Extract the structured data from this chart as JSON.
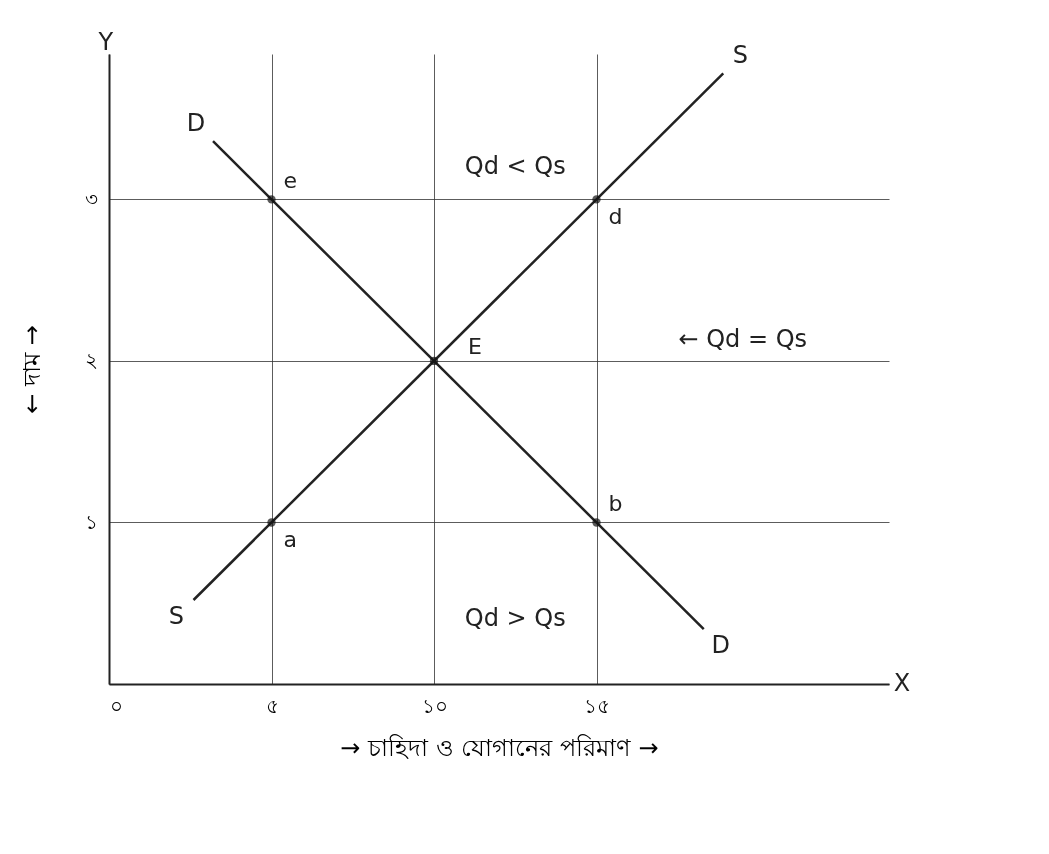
{
  "chart_data": {
    "type": "line",
    "xlabel": "→ চাহিদা ও যোগানের পরিমাণ →",
    "ylabel": "← দাম →",
    "xlim": [
      0,
      24
    ],
    "ylim": [
      0,
      3.9
    ],
    "xticks": [
      {
        "value": 0,
        "label": "০"
      },
      {
        "value": 5,
        "label": "৫"
      },
      {
        "value": 10,
        "label": "১০"
      },
      {
        "value": 15,
        "label": "১৫"
      }
    ],
    "yticks": [
      {
        "value": 0,
        "label": null
      },
      {
        "value": 1,
        "label": "১"
      },
      {
        "value": 2,
        "label": "২"
      },
      {
        "value": 3,
        "label": "৩"
      }
    ],
    "grid": true,
    "series": [
      {
        "name": "D",
        "color": "#222222",
        "x": [
          3.2,
          18.3
        ],
        "values": [
          3.36,
          0.34
        ]
      },
      {
        "name": "S",
        "color": "#222222",
        "x": [
          2.6,
          18.9
        ],
        "values": [
          0.52,
          3.78
        ]
      },
      {
        "type": "scatter",
        "color": "#111111",
        "marker": "circle",
        "x": [
          5,
          15,
          10,
          5,
          15
        ],
        "values": [
          3,
          3,
          2,
          1,
          1
        ],
        "value_labels": [
          "e",
          "d",
          "E",
          "a",
          "b"
        ]
      }
    ],
    "annotations": [
      "Qd < Qs",
      "← Qd = Qs",
      "Qd > Qs",
      "Y",
      "X"
    ]
  }
}
